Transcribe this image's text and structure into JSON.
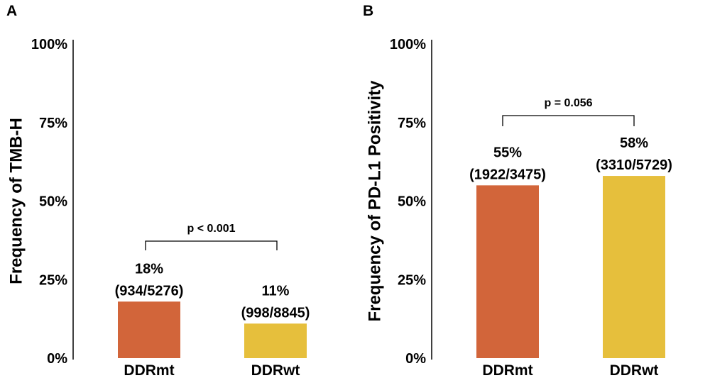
{
  "colors": {
    "DDRmt": "#D2653A",
    "DDRwt": "#E6BF3C"
  },
  "chart_data": [
    {
      "type": "bar",
      "panel": "A",
      "ylabel": "Frequency of TMB-H",
      "xlabel": "",
      "ylim": [
        0,
        100
      ],
      "yticks": [
        "0%",
        "25%",
        "50%",
        "75%",
        "100%"
      ],
      "categories": [
        "DDRmt",
        "DDRwt"
      ],
      "values": [
        18,
        11
      ],
      "labels": [
        {
          "pct": "18%",
          "count": "(934/5276)"
        },
        {
          "pct": "11%",
          "count": "(998/8845)"
        }
      ],
      "pvalue": "p < 0.001",
      "grid": false,
      "legend": "none"
    },
    {
      "type": "bar",
      "panel": "B",
      "ylabel": "Frequency of PD-L1 Positivity",
      "xlabel": "",
      "ylim": [
        0,
        100
      ],
      "yticks": [
        "0%",
        "25%",
        "50%",
        "75%",
        "100%"
      ],
      "categories": [
        "DDRmt",
        "DDRwt"
      ],
      "values": [
        55,
        58
      ],
      "labels": [
        {
          "pct": "55%",
          "count": "(1922/3475)"
        },
        {
          "pct": "58%",
          "count": "(3310/5729)"
        }
      ],
      "pvalue": "p = 0.056",
      "grid": false,
      "legend": "none"
    }
  ]
}
